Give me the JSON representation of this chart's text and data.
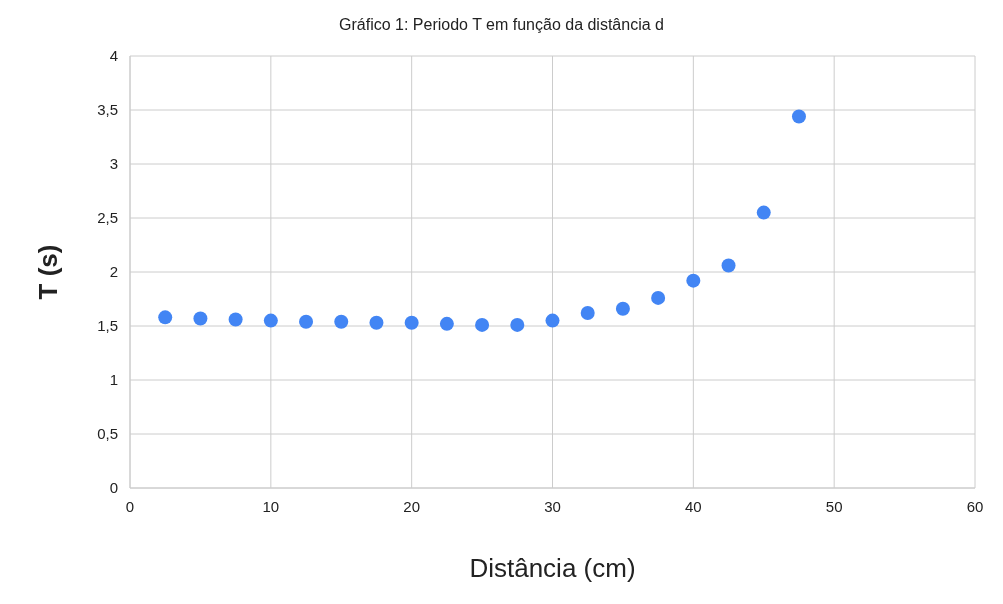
{
  "chart_data": {
    "type": "scatter",
    "title": "Gráfico 1: Periodo T em função da distância d",
    "xlabel": "Distância (cm)",
    "ylabel": "T (s)",
    "x": [
      2.5,
      5,
      7.5,
      10,
      12.5,
      15,
      17.5,
      20,
      22.5,
      25,
      27.5,
      30,
      32.5,
      35,
      37.5,
      40,
      42.5,
      45,
      47.5
    ],
    "series": [
      {
        "color": "#4285f4",
        "values": [
          1.58,
          1.57,
          1.56,
          1.55,
          1.54,
          1.54,
          1.53,
          1.53,
          1.52,
          1.51,
          1.51,
          1.55,
          1.62,
          1.66,
          1.76,
          1.92,
          2.06,
          2.55,
          3.44
        ]
      }
    ],
    "xlim": [
      0,
      60
    ],
    "xticks": [
      0,
      10,
      20,
      30,
      40,
      50,
      60
    ],
    "ylim": [
      0,
      4
    ],
    "yticks": [
      0,
      {
        "value": 0.5,
        "label": "0,5"
      },
      1,
      {
        "value": 1.5,
        "label": "1,5"
      },
      2,
      {
        "value": 2.5,
        "label": "2,5"
      },
      3,
      {
        "value": 3.5,
        "label": "3,5"
      },
      4
    ],
    "grid": true,
    "marker": "circle",
    "legend": false
  }
}
